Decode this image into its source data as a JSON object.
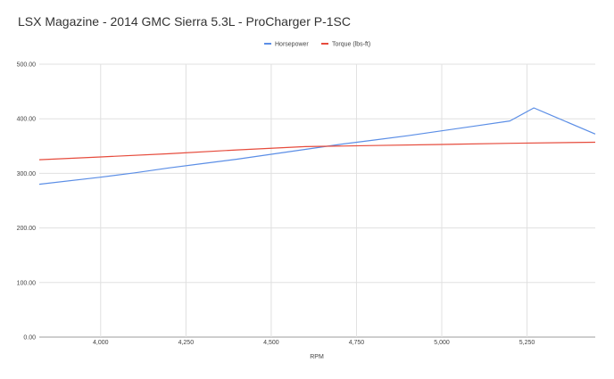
{
  "chart_data": {
    "type": "line",
    "title": "LSX Magazine - 2014 GMC Sierra 5.3L - ProCharger P-1SC",
    "xlabel": "RPM",
    "ylabel": "",
    "xlim": [
      3820,
      5450
    ],
    "ylim": [
      0,
      500
    ],
    "x_ticks": [
      4000,
      4250,
      4500,
      4750,
      5000,
      5250
    ],
    "x_tick_labels": [
      "4,000",
      "4,250",
      "4,500",
      "4,750",
      "5,000",
      "5,250"
    ],
    "y_ticks": [
      0,
      100,
      200,
      300,
      400,
      500
    ],
    "y_tick_labels": [
      "0.00",
      "100.00",
      "200.00",
      "300.00",
      "400.00",
      "500.00"
    ],
    "grid": true,
    "legend_position": "top-center",
    "series": [
      {
        "name": "Horsepower",
        "color": "#5b8ee6",
        "x": [
          3820,
          4000,
          4100,
          4200,
          4300,
          4400,
          4500,
          4600,
          4700,
          4800,
          4900,
          5000,
          5100,
          5200,
          5270,
          5450
        ],
        "y": [
          280,
          293,
          301,
          310,
          318,
          326,
          335,
          344,
          353,
          361,
          369,
          378,
          387,
          396,
          420,
          372
        ]
      },
      {
        "name": "Torque (lbs-ft)",
        "color": "#e64b3c",
        "x": [
          3820,
          4000,
          4200,
          4400,
          4600,
          4800,
          5000,
          5200,
          5450
        ],
        "y": [
          325,
          330,
          336,
          343,
          349,
          351,
          353,
          355,
          357
        ]
      }
    ]
  }
}
